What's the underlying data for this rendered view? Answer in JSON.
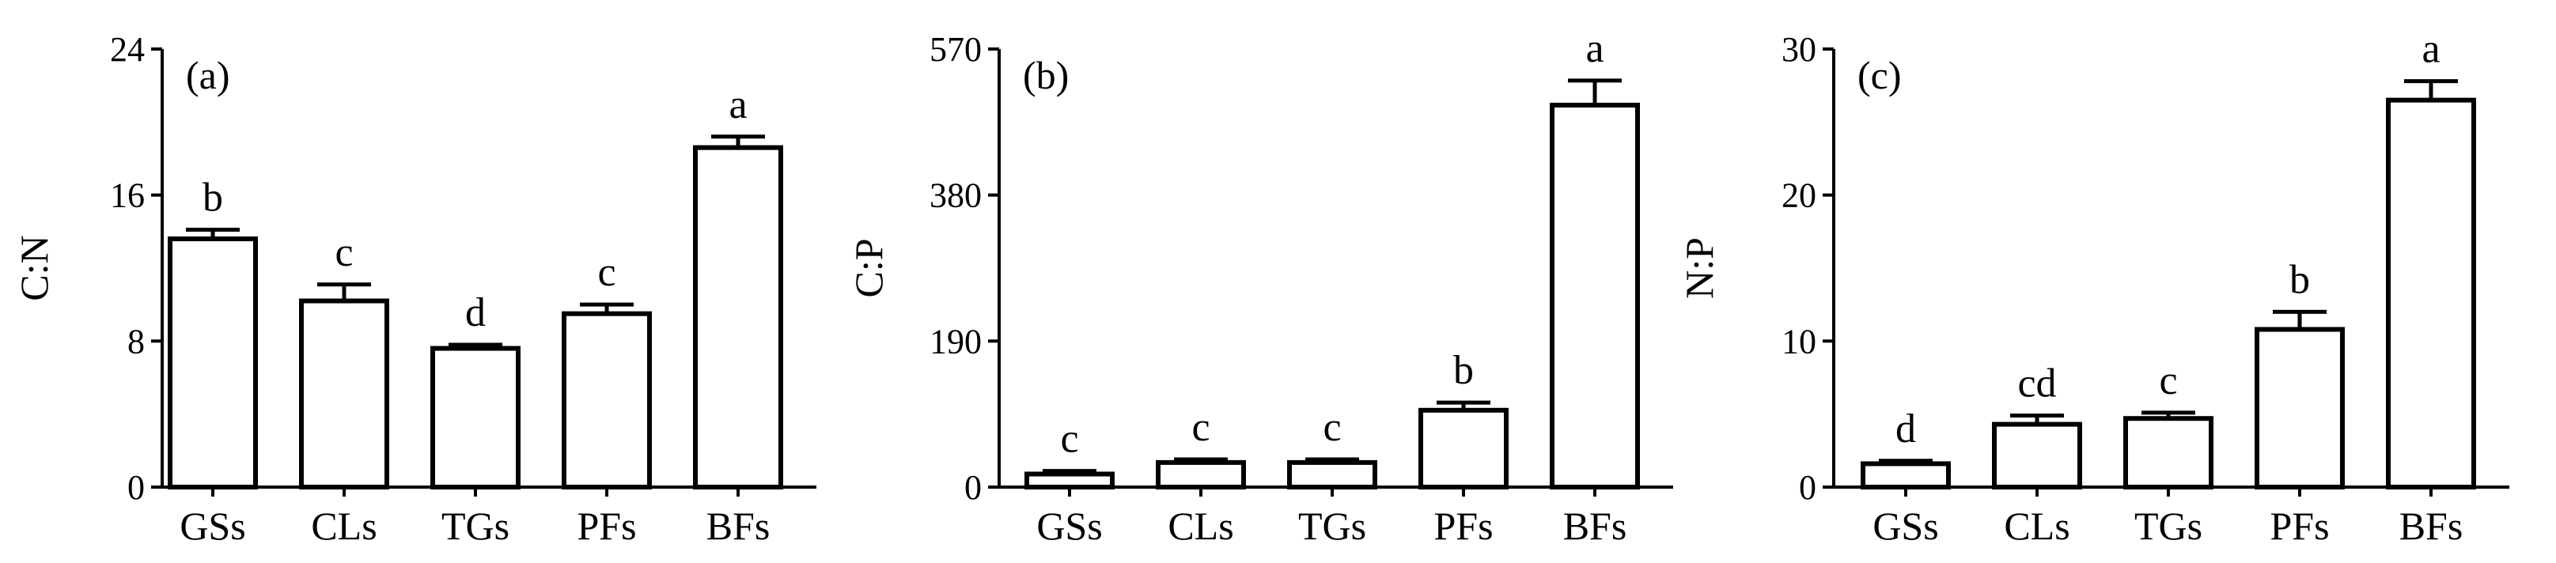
{
  "chart_data": [
    {
      "type": "bar",
      "panel_label": "(a)",
      "ylabel": "C:N",
      "categories": [
        "GSs",
        "CLs",
        "TGs",
        "PFs",
        "BFs"
      ],
      "values": [
        13.6,
        10.2,
        7.6,
        9.5,
        18.6
      ],
      "errors": [
        0.5,
        0.9,
        0.2,
        0.5,
        0.6
      ],
      "significance": [
        "b",
        "c",
        "d",
        "c",
        "a"
      ],
      "ylim": [
        0,
        24
      ],
      "yticks": [
        0,
        8,
        16,
        24
      ]
    },
    {
      "type": "bar",
      "panel_label": "(b)",
      "ylabel": "C:P",
      "categories": [
        "GSs",
        "CLs",
        "TGs",
        "PFs",
        "BFs"
      ],
      "values": [
        17,
        32,
        32,
        100,
        497
      ],
      "errors": [
        4,
        4,
        4,
        10,
        32
      ],
      "significance": [
        "c",
        "c",
        "c",
        "b",
        "a"
      ],
      "ylim": [
        0,
        570
      ],
      "yticks": [
        0,
        190,
        380,
        570
      ]
    },
    {
      "type": "bar",
      "panel_label": "(c)",
      "ylabel": "N:P",
      "categories": [
        "GSs",
        "CLs",
        "TGs",
        "PFs",
        "BFs"
      ],
      "values": [
        1.6,
        4.3,
        4.7,
        10.8,
        26.5
      ],
      "errors": [
        0.2,
        0.6,
        0.4,
        1.2,
        1.3
      ],
      "significance": [
        "d",
        "cd",
        "c",
        "b",
        "a"
      ],
      "ylim": [
        0,
        30
      ],
      "yticks": [
        0,
        10,
        20,
        30
      ]
    }
  ]
}
